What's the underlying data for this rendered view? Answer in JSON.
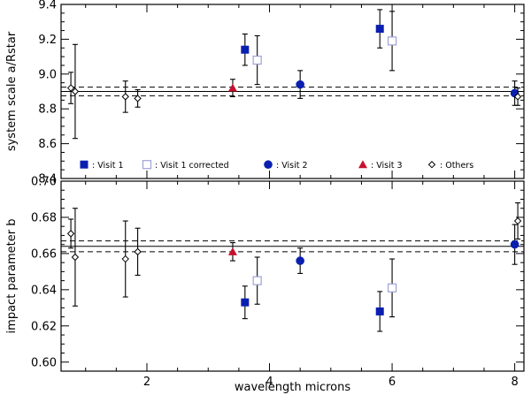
{
  "chart_data": [
    {
      "type": "scatter",
      "ylabel": "system scale a/Rstar",
      "xlim": [
        0.6,
        8.15
      ],
      "ylim": [
        8.4,
        9.4
      ],
      "yticks": [
        8.4,
        8.6,
        8.8,
        9.0,
        9.2,
        9.4
      ],
      "ytick_labels": [
        "8.4",
        "8.6",
        "8.8",
        "9.0",
        "9.2",
        "9.4"
      ],
      "hlines": [
        {
          "y": 8.9,
          "style": "solid"
        },
        {
          "y": 8.925,
          "style": "dashed"
        },
        {
          "y": 8.875,
          "style": "dashed"
        }
      ],
      "series": [
        {
          "name": ": Visit 1",
          "marker": "square-filled",
          "color": "#0a1fb0",
          "points": [
            {
              "x": 3.6,
              "y": 9.14,
              "yerr": [
                0.09,
                0.09
              ]
            },
            {
              "x": 5.8,
              "y": 9.26,
              "yerr": [
                0.11,
                0.11
              ]
            }
          ]
        },
        {
          "name": ": Visit 1 corrected",
          "marker": "square-open",
          "color": "#9ea2d8",
          "points": [
            {
              "x": 3.8,
              "y": 9.08,
              "yerr": [
                0.14,
                0.14
              ]
            },
            {
              "x": 6.0,
              "y": 9.19,
              "yerr": [
                0.17,
                0.17
              ]
            }
          ]
        },
        {
          "name": ": Visit 2",
          "marker": "circle-filled",
          "color": "#0a1fb0",
          "points": [
            {
              "x": 4.5,
              "y": 8.94,
              "yerr": [
                0.08,
                0.08
              ]
            },
            {
              "x": 8.0,
              "y": 8.89,
              "yerr": [
                0.07,
                0.07
              ]
            }
          ]
        },
        {
          "name": ": Visit 3",
          "marker": "triangle-filled",
          "color": "#c8102e",
          "points": [
            {
              "x": 3.4,
              "y": 8.92,
              "yerr": [
                0.05,
                0.05
              ]
            }
          ]
        },
        {
          "name": ": Others",
          "marker": "diamond-open",
          "color": "#000000",
          "points": [
            {
              "x": 0.76,
              "y": 8.92,
              "yerr": [
                0.09,
                0.09
              ]
            },
            {
              "x": 0.83,
              "y": 8.9,
              "yerr": [
                0.27,
                0.27
              ]
            },
            {
              "x": 1.65,
              "y": 8.87,
              "yerr": [
                0.09,
                0.09
              ]
            },
            {
              "x": 1.85,
              "y": 8.86,
              "yerr": [
                0.05,
                0.05
              ]
            },
            {
              "x": 8.05,
              "y": 8.87,
              "yerr": [
                0.05,
                0.05
              ]
            }
          ]
        }
      ],
      "legend": {
        "placement": "bottom-inside",
        "y_value": 8.47
      }
    },
    {
      "type": "scatter",
      "xlabel": "wavelength microns",
      "ylabel": "impact parameter b",
      "xlim": [
        0.6,
        8.15
      ],
      "ylim": [
        0.595,
        0.7
      ],
      "xticks": [
        2,
        4,
        6,
        8
      ],
      "xtick_labels": [
        "2",
        "4",
        "6",
        "8"
      ],
      "yticks": [
        0.6,
        0.62,
        0.64,
        0.66,
        0.68,
        0.7
      ],
      "ytick_labels": [
        "0.60",
        "0.62",
        "0.64",
        "0.66",
        "0.68",
        "0.70"
      ],
      "hlines": [
        {
          "y": 0.664,
          "style": "solid"
        },
        {
          "y": 0.667,
          "style": "dashed"
        },
        {
          "y": 0.661,
          "style": "dashed"
        }
      ],
      "series": [
        {
          "name": ": Visit 1",
          "marker": "square-filled",
          "color": "#0a1fb0",
          "points": [
            {
              "x": 3.6,
              "y": 0.633,
              "yerr": [
                0.009,
                0.009
              ]
            },
            {
              "x": 5.8,
              "y": 0.628,
              "yerr": [
                0.011,
                0.011
              ]
            }
          ]
        },
        {
          "name": ": Visit 1 corrected",
          "marker": "square-open",
          "color": "#9ea2d8",
          "points": [
            {
              "x": 3.8,
              "y": 0.645,
              "yerr": [
                0.013,
                0.013
              ]
            },
            {
              "x": 6.0,
              "y": 0.641,
              "yerr": [
                0.016,
                0.016
              ]
            }
          ]
        },
        {
          "name": ": Visit 2",
          "marker": "circle-filled",
          "color": "#0a1fb0",
          "points": [
            {
              "x": 4.5,
              "y": 0.656,
              "yerr": [
                0.007,
                0.007
              ]
            },
            {
              "x": 8.0,
              "y": 0.665,
              "yerr": [
                0.011,
                0.011
              ]
            }
          ]
        },
        {
          "name": ": Visit 3",
          "marker": "triangle-filled",
          "color": "#c8102e",
          "points": [
            {
              "x": 3.4,
              "y": 0.661,
              "yerr": [
                0.005,
                0.005
              ]
            }
          ]
        },
        {
          "name": ": Others",
          "marker": "diamond-open",
          "color": "#000000",
          "points": [
            {
              "x": 0.76,
              "y": 0.671,
              "yerr": [
                0.008,
                0.008
              ]
            },
            {
              "x": 0.83,
              "y": 0.658,
              "yerr": [
                0.027,
                0.027
              ]
            },
            {
              "x": 1.65,
              "y": 0.657,
              "yerr": [
                0.021,
                0.021
              ]
            },
            {
              "x": 1.85,
              "y": 0.661,
              "yerr": [
                0.013,
                0.013
              ]
            },
            {
              "x": 8.05,
              "y": 0.678,
              "yerr": [
                0.01,
                0.01
              ]
            }
          ]
        }
      ]
    }
  ]
}
